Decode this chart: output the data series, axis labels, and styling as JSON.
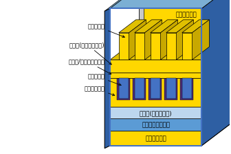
{
  "colors": {
    "yellow": "#FFD700",
    "yellow_side": "#C8A800",
    "yellow_top": "#E0C000",
    "blue_frame": "#4472C4",
    "blue_frame_side": "#2E5FA3",
    "blue_frame_light": "#7BAFD4",
    "blue_light": "#BDD7EE",
    "blue_mid": "#8EB4D8",
    "blue_dark_layer": "#5B9BD5",
    "gray_pad": "#A0A0A0",
    "gray_light": "#C8C8C8",
    "purple_ins": "#6B3FA0",
    "dark_ins": "#4B2D7A",
    "gate_blue": "#4472C4",
    "black": "#000000",
    "white": "#FFFFFF"
  },
  "labels": {
    "source": "ソース電極",
    "epi_contact": "エピ膜(コンタクト層)",
    "source_gate_ins": "ソース/ゲート間絶縁膜",
    "gate_electrode": "ゲート電極",
    "gate_insulator": "ゲート絶縁膜",
    "gate_pad": "ゲートパッド",
    "epi_voltage": "エピ膜(耒圧維持層)",
    "gallium_oxide": "酸化ガリウム基板",
    "drain": "ドレイン電極"
  }
}
